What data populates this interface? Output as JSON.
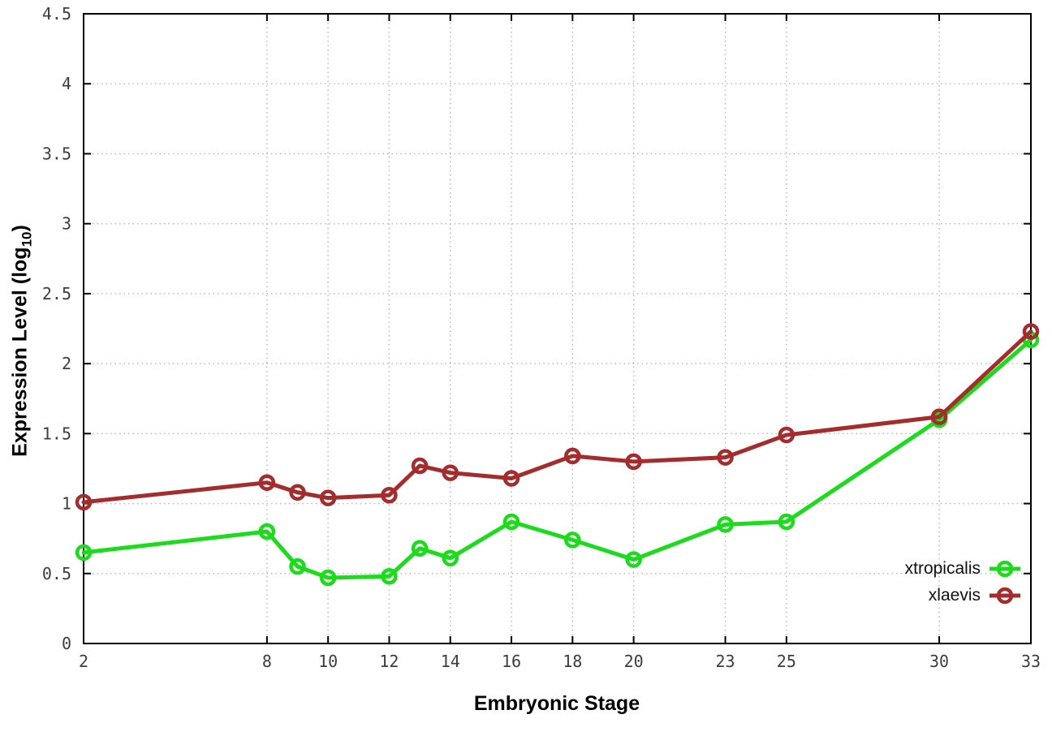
{
  "chart_data": {
    "type": "line",
    "title": "",
    "xlabel": "Embryonic Stage",
    "ylabel": "Expression Level (log10)",
    "ylabel_parts": {
      "main": "Expression Level (log",
      "sub": "10",
      "end": ")"
    },
    "x": [
      2,
      8,
      9,
      10,
      12,
      13,
      14,
      16,
      18,
      20,
      23,
      25,
      30,
      33
    ],
    "series": [
      {
        "name": "xtropicalis",
        "color": "#1bdc1b",
        "values": [
          0.65,
          0.8,
          0.55,
          0.47,
          0.48,
          0.68,
          0.61,
          0.87,
          0.74,
          0.6,
          0.85,
          0.87,
          1.6,
          2.17
        ]
      },
      {
        "name": "xlaevis",
        "color": "#a42c2c",
        "values": [
          1.01,
          1.15,
          1.08,
          1.04,
          1.06,
          1.27,
          1.22,
          1.18,
          1.34,
          1.3,
          1.33,
          1.49,
          1.62,
          2.23
        ]
      }
    ],
    "x_ticks": [
      2,
      8,
      10,
      12,
      14,
      16,
      18,
      20,
      23,
      25,
      30,
      33
    ],
    "y_ticks": [
      0,
      0.5,
      1,
      1.5,
      2,
      2.5,
      3,
      3.5,
      4,
      4.5
    ],
    "xlim": [
      2,
      33
    ],
    "ylim": [
      0,
      4.5
    ],
    "grid": true,
    "legend_position": "inside-bottom-right",
    "style": {
      "grid_color": "#b5b5b5",
      "axis_color": "#000000",
      "tick_label_color": "#3d3d3d",
      "background": "#ffffff",
      "line_width": 5,
      "marker_radius": 8,
      "marker_stroke": 4.5
    }
  }
}
